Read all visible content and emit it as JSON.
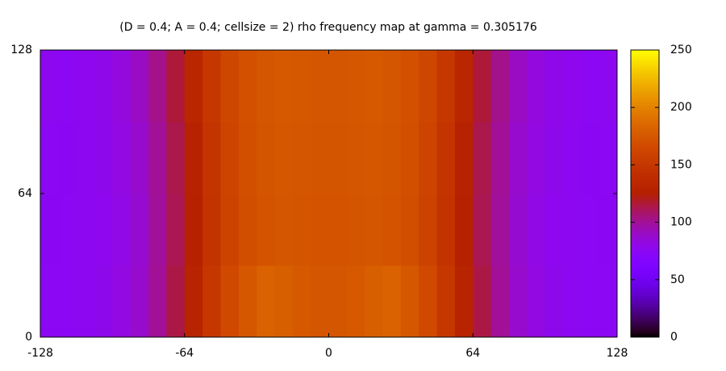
{
  "chart_data": {
    "type": "heatmap",
    "title": "(D = 0.4; A = 0.4; cellsize = 2) rho frequency map at gamma = 0.305176",
    "x_edges": [
      -128,
      -120,
      -112,
      -104,
      -96,
      -88,
      -80,
      -72,
      -64,
      -56,
      -48,
      -40,
      -32,
      -24,
      -16,
      -8,
      0,
      8,
      16,
      24,
      32,
      40,
      48,
      56,
      64,
      72,
      80,
      88,
      96,
      104,
      112,
      120,
      128
    ],
    "y_edges": [
      0,
      32,
      64,
      96,
      128
    ],
    "z": [
      [
        75,
        75,
        76,
        78,
        82,
        88,
        100,
        114,
        130,
        150,
        165,
        175,
        182,
        180,
        176,
        174,
        174,
        176,
        180,
        182,
        175,
        165,
        150,
        130,
        114,
        100,
        88,
        82,
        78,
        76,
        75,
        75
      ],
      [
        74,
        75,
        76,
        77,
        81,
        87,
        99,
        112,
        128,
        146,
        160,
        168,
        172,
        174,
        173,
        172,
        172,
        173,
        174,
        172,
        168,
        160,
        146,
        128,
        112,
        99,
        87,
        81,
        77,
        76,
        75,
        74
      ],
      [
        75,
        74,
        76,
        78,
        82,
        88,
        100,
        113,
        129,
        147,
        161,
        169,
        173,
        175,
        174,
        173,
        173,
        174,
        175,
        173,
        169,
        161,
        147,
        129,
        113,
        100,
        88,
        82,
        78,
        76,
        74,
        75
      ],
      [
        76,
        75,
        77,
        79,
        83,
        90,
        102,
        116,
        132,
        150,
        163,
        170,
        174,
        176,
        175,
        174,
        174,
        175,
        176,
        174,
        170,
        163,
        150,
        132,
        116,
        102,
        90,
        83,
        79,
        77,
        75,
        76
      ]
    ],
    "xlim": [
      -128,
      128
    ],
    "ylim": [
      0,
      128
    ],
    "xticks": [
      -128,
      -64,
      0,
      64,
      128
    ],
    "yticks": [
      0,
      64,
      128
    ],
    "palette": "gnuplot",
    "colorbar": {
      "lim": [
        0,
        250
      ],
      "ticks": [
        0,
        50,
        100,
        150,
        200,
        250
      ]
    }
  }
}
